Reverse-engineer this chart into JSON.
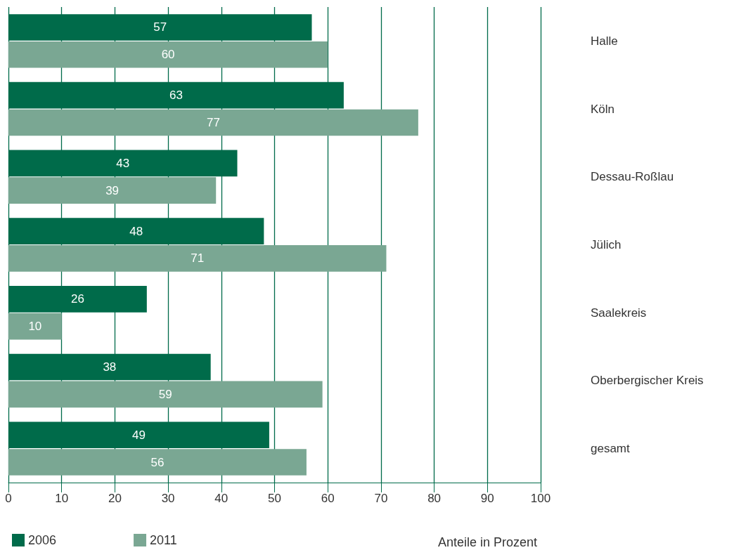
{
  "chart_data": {
    "type": "bar",
    "orientation": "horizontal",
    "xlabel": "Anteile in Prozent",
    "categories": [
      "Halle",
      "Köln",
      "Dessau-Roßlau",
      "Jülich",
      "Saalekreis",
      "Oberbergischer Kreis",
      "gesamt"
    ],
    "series": [
      {
        "name": "2006",
        "color": "#006b4a",
        "values": [
          57,
          63,
          43,
          48,
          26,
          38,
          49
        ]
      },
      {
        "name": "2011",
        "color": "#7aa793",
        "values": [
          60,
          77,
          39,
          71,
          10,
          59,
          56
        ]
      }
    ],
    "xlim": [
      0,
      100
    ],
    "xticks": [
      0,
      10,
      20,
      30,
      40,
      50,
      60,
      70,
      80,
      90,
      100
    ],
    "grid": "x",
    "legend": "bottom left",
    "data_labels": true
  }
}
